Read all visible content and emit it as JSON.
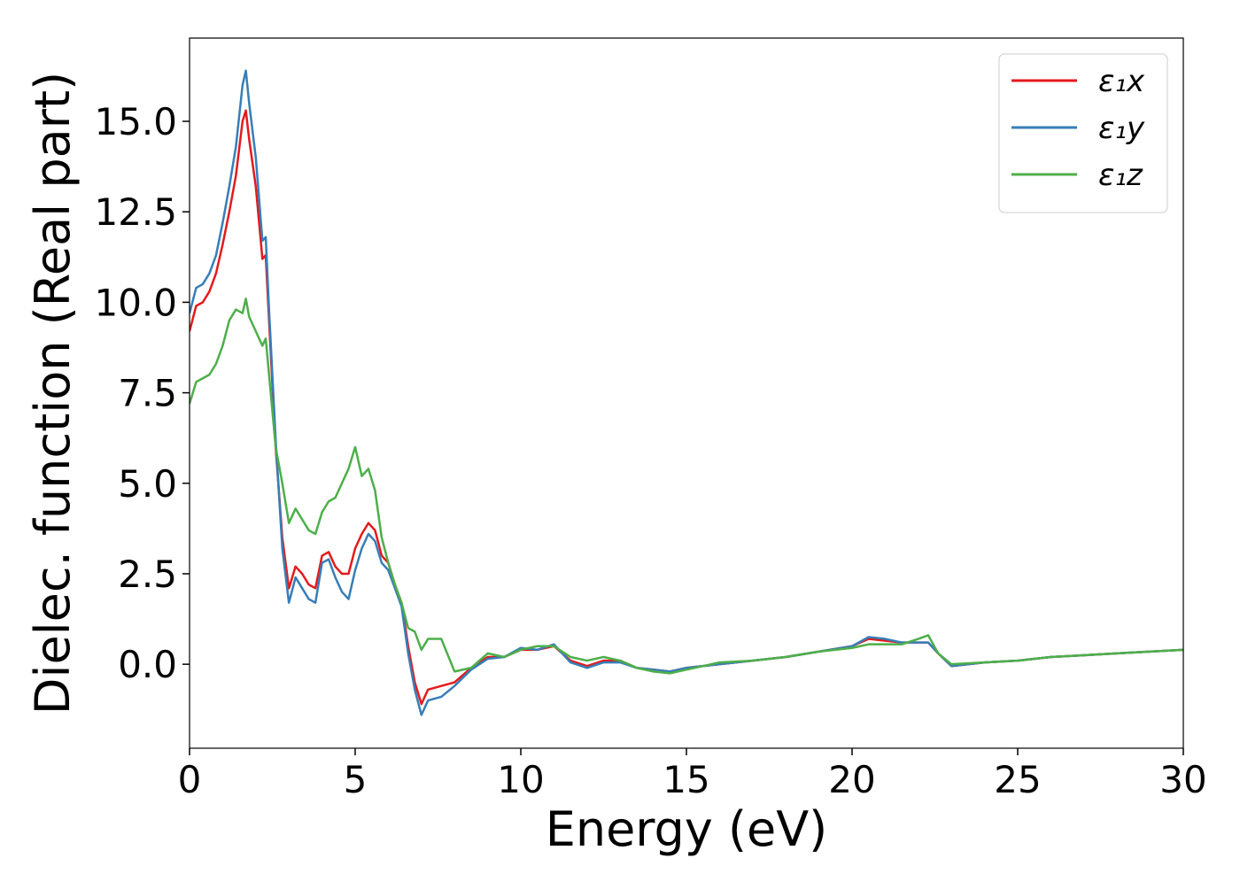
{
  "chart_data": {
    "type": "line",
    "xlabel": "Energy (eV)",
    "ylabel": "Dielec. function (Real part)",
    "x": [
      0,
      0.2,
      0.4,
      0.6,
      0.8,
      1.0,
      1.2,
      1.4,
      1.6,
      1.7,
      1.8,
      2.0,
      2.2,
      2.3,
      2.4,
      2.6,
      2.8,
      3.0,
      3.2,
      3.4,
      3.6,
      3.8,
      4.0,
      4.2,
      4.4,
      4.6,
      4.8,
      5.0,
      5.2,
      5.4,
      5.6,
      5.8,
      6.0,
      6.2,
      6.4,
      6.6,
      6.8,
      7.0,
      7.2,
      7.6,
      8.0,
      8.5,
      9.0,
      9.5,
      10,
      10.5,
      11,
      11.5,
      12,
      12.5,
      13,
      13.5,
      14,
      14.5,
      15,
      16,
      17,
      18,
      19,
      20,
      20.5,
      21,
      21.5,
      22,
      22.3,
      22.6,
      23,
      24,
      25,
      26,
      27,
      28,
      29,
      30
    ],
    "series": [
      {
        "name": "ε₁x",
        "color": "#e41a1c",
        "values": [
          9.2,
          9.9,
          10.0,
          10.3,
          10.8,
          11.6,
          12.5,
          13.5,
          15.0,
          15.3,
          14.5,
          13.2,
          11.2,
          11.3,
          9.5,
          6.0,
          3.5,
          2.1,
          2.7,
          2.5,
          2.2,
          2.1,
          3.0,
          3.1,
          2.7,
          2.5,
          2.5,
          3.2,
          3.6,
          3.9,
          3.7,
          3.0,
          2.8,
          2.2,
          1.7,
          0.5,
          -0.5,
          -1.1,
          -0.7,
          -0.6,
          -0.5,
          -0.1,
          0.2,
          0.2,
          0.4,
          0.4,
          0.5,
          0.1,
          -0.05,
          0.1,
          0.1,
          -0.1,
          -0.15,
          -0.2,
          -0.1,
          0.0,
          0.1,
          0.2,
          0.35,
          0.5,
          0.7,
          0.65,
          0.6,
          0.6,
          0.6,
          0.3,
          -0.05,
          0.05,
          0.1,
          0.2,
          0.25,
          0.3,
          0.35,
          0.4
        ]
      },
      {
        "name": "ε₁y",
        "color": "#377eb8",
        "values": [
          9.7,
          10.4,
          10.5,
          10.8,
          11.3,
          12.2,
          13.2,
          14.3,
          16.0,
          16.4,
          15.5,
          14.0,
          11.7,
          11.8,
          9.8,
          6.2,
          3.2,
          1.7,
          2.4,
          2.1,
          1.8,
          1.7,
          2.8,
          2.9,
          2.4,
          2.0,
          1.8,
          2.6,
          3.2,
          3.6,
          3.4,
          2.8,
          2.6,
          2.1,
          1.6,
          0.3,
          -0.7,
          -1.4,
          -1.0,
          -0.9,
          -0.6,
          -0.15,
          0.15,
          0.2,
          0.45,
          0.4,
          0.55,
          0.05,
          -0.1,
          0.05,
          0.05,
          -0.1,
          -0.15,
          -0.2,
          -0.1,
          0.0,
          0.1,
          0.2,
          0.35,
          0.5,
          0.75,
          0.7,
          0.6,
          0.6,
          0.6,
          0.3,
          -0.05,
          0.05,
          0.1,
          0.2,
          0.25,
          0.3,
          0.35,
          0.4
        ]
      },
      {
        "name": "ε₁z",
        "color": "#4daf4a",
        "values": [
          7.2,
          7.8,
          7.9,
          8.0,
          8.3,
          8.8,
          9.5,
          9.8,
          9.7,
          10.1,
          9.6,
          9.2,
          8.8,
          9.0,
          8.0,
          6.0,
          5.0,
          3.9,
          4.3,
          4.0,
          3.7,
          3.6,
          4.2,
          4.5,
          4.6,
          5.0,
          5.4,
          6.0,
          5.2,
          5.4,
          4.8,
          3.5,
          2.8,
          2.2,
          1.7,
          1.0,
          0.9,
          0.4,
          0.7,
          0.7,
          -0.2,
          -0.1,
          0.3,
          0.2,
          0.4,
          0.5,
          0.5,
          0.2,
          0.1,
          0.2,
          0.1,
          -0.1,
          -0.2,
          -0.25,
          -0.15,
          0.05,
          0.1,
          0.2,
          0.35,
          0.45,
          0.55,
          0.55,
          0.55,
          0.7,
          0.8,
          0.3,
          0.0,
          0.05,
          0.1,
          0.2,
          0.25,
          0.3,
          0.35,
          0.4
        ]
      }
    ],
    "xlim": [
      0,
      30
    ],
    "xticks": [
      0,
      5,
      10,
      15,
      20,
      25,
      30
    ],
    "ylim": [
      -2.32,
      17.3
    ],
    "yticks": [
      {
        "value": 0,
        "label": "0.0"
      },
      {
        "value": 2.5,
        "label": "2.5"
      },
      {
        "value": 5,
        "label": "5.0"
      },
      {
        "value": 7.5,
        "label": "7.5"
      },
      {
        "value": 10,
        "label": "10.0"
      },
      {
        "value": 12.5,
        "label": "12.5"
      },
      {
        "value": 15,
        "label": "15.0"
      }
    ],
    "legend": "upper right",
    "grid": false
  }
}
